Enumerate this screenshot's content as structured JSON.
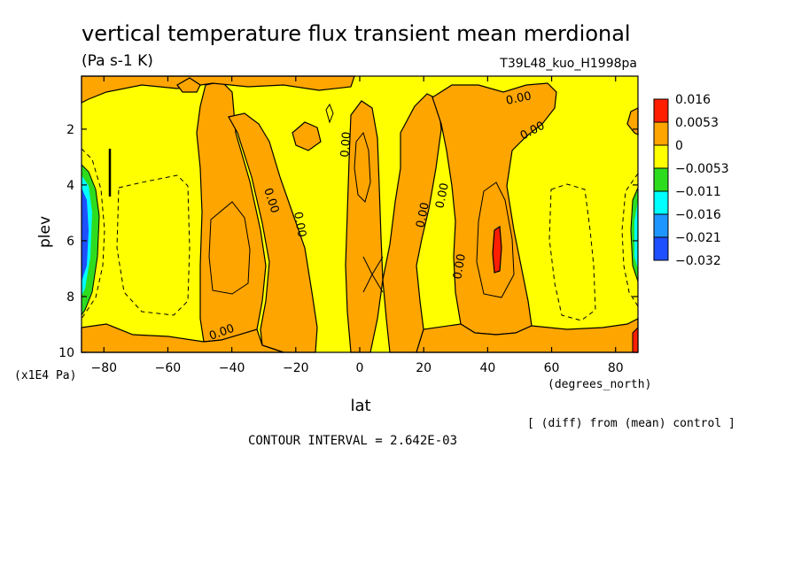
{
  "chart_data": {
    "type": "heatmap",
    "title": "vertical temperature flux transient mean merdional",
    "units": "(Pa s-1 K)",
    "run_label": "T39L48_kuo_H1998pa",
    "xlabel": "lat",
    "xunits": "(degrees_north)",
    "ylabel": "plev",
    "yunits": "(x1E4 Pa)",
    "xlim": [
      -87,
      87
    ],
    "ylim": [
      10,
      0.1
    ],
    "x_ticks": [
      -80,
      -60,
      -40,
      -20,
      0,
      20,
      40,
      60,
      80
    ],
    "x_tick_labels": [
      "−80",
      "−60",
      "−40",
      "−20",
      "0",
      "20",
      "40",
      "60",
      "80"
    ],
    "y_ticks": [
      2,
      4,
      6,
      8,
      10
    ],
    "y_tick_labels": [
      "2",
      "4",
      "6",
      "8",
      "10"
    ],
    "contour_interval_text": "CONTOUR INTERVAL = 2.642E-03",
    "note": "[ (diff) from (mean) control ]",
    "contour_label": "0.00",
    "colorbar": {
      "labels": [
        "0.016",
        "0.0053",
        "0",
        "−0.0053",
        "−0.011",
        "−0.016",
        "−0.021",
        "−0.032"
      ],
      "colors": [
        "#ff1e00",
        "#ffa500",
        "#ffff00",
        "#2edc1e",
        "#00ffff",
        "#1e96ff",
        "#1e50ff"
      ]
    },
    "background_color": "#ffff00",
    "regions": [
      {
        "name": "positive band near 50S",
        "color": "#ffa500",
        "bounds_lat": [
          -55,
          -28
        ],
        "bounds_plev": [
          0.5,
          9.8
        ]
      },
      {
        "name": "positive band near 20S",
        "color": "#ffa500",
        "bounds_lat": [
          -35,
          -12
        ],
        "bounds_plev": [
          0.8,
          10
        ]
      },
      {
        "name": "positive equatorial column",
        "color": "#ffa500",
        "bounds_lat": [
          -5,
          8
        ],
        "bounds_plev": [
          0.9,
          10
        ]
      },
      {
        "name": "positive band 10N-30N",
        "color": "#ffa500",
        "bounds_lat": [
          10,
          32
        ],
        "bounds_plev": [
          0.3,
          10
        ]
      },
      {
        "name": "positive band near 40N",
        "color": "#ffa500",
        "bounds_lat": [
          30,
          62
        ],
        "bounds_plev": [
          0.1,
          9.5
        ]
      },
      {
        "name": "max near 43N",
        "color": "#ff1e00",
        "bounds_lat": [
          41.5,
          44.5
        ],
        "bounds_plev": [
          5.7,
          7.4
        ]
      },
      {
        "name": "min near 87S",
        "color": "#1e50ff",
        "bounds_lat": [
          -87,
          -84
        ],
        "bounds_plev": [
          4.0,
          7.5
        ]
      }
    ]
  }
}
